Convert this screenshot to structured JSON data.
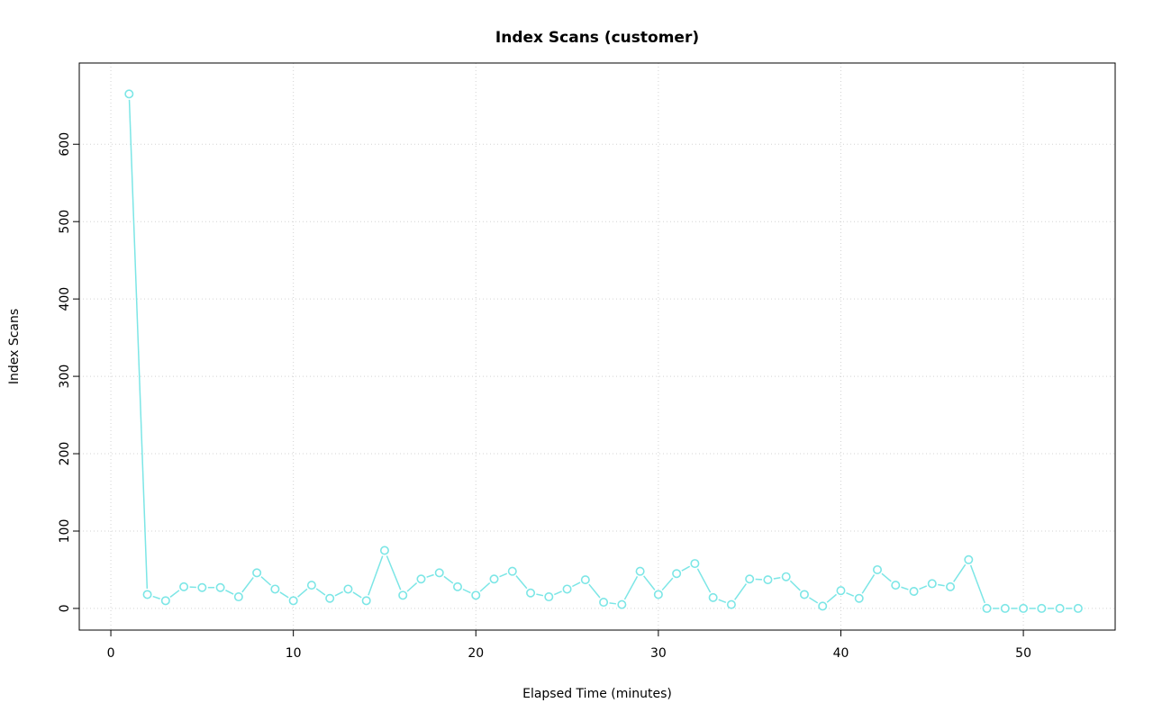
{
  "page": {
    "background": "#ffffff"
  },
  "chart_data": {
    "type": "line",
    "title": "Index Scans (customer)",
    "xlabel": "Elapsed Time (minutes)",
    "ylabel": "Index Scans",
    "series_color": "#7ce6e6",
    "grid_color": "#d3d3d3",
    "marker": "open-circle",
    "grid": true,
    "legend": "none",
    "x_ticks": [
      0,
      10,
      20,
      30,
      40,
      50
    ],
    "y_ticks": [
      0,
      100,
      200,
      300,
      400,
      500,
      600
    ],
    "xlim": [
      -1.73,
      55.03
    ],
    "ylim": [
      -28,
      705
    ],
    "x": [
      1,
      2,
      3,
      4,
      5,
      6,
      7,
      8,
      9,
      10,
      11,
      12,
      13,
      14,
      15,
      16,
      17,
      18,
      19,
      20,
      21,
      22,
      23,
      24,
      25,
      26,
      27,
      28,
      29,
      30,
      31,
      32,
      33,
      34,
      35,
      36,
      37,
      38,
      39,
      40,
      41,
      42,
      43,
      44,
      45,
      46,
      47,
      48,
      49,
      50,
      51,
      52,
      53
    ],
    "y": [
      665,
      18,
      10,
      28,
      27,
      27,
      15,
      46,
      25,
      10,
      30,
      13,
      25,
      10,
      75,
      17,
      38,
      46,
      28,
      17,
      38,
      48,
      20,
      15,
      25,
      37,
      8,
      5,
      48,
      18,
      45,
      58,
      14,
      5,
      38,
      37,
      41,
      18,
      3,
      23,
      13,
      50,
      30,
      22,
      32,
      28,
      63,
      0,
      0,
      0,
      0,
      0,
      0
    ]
  }
}
